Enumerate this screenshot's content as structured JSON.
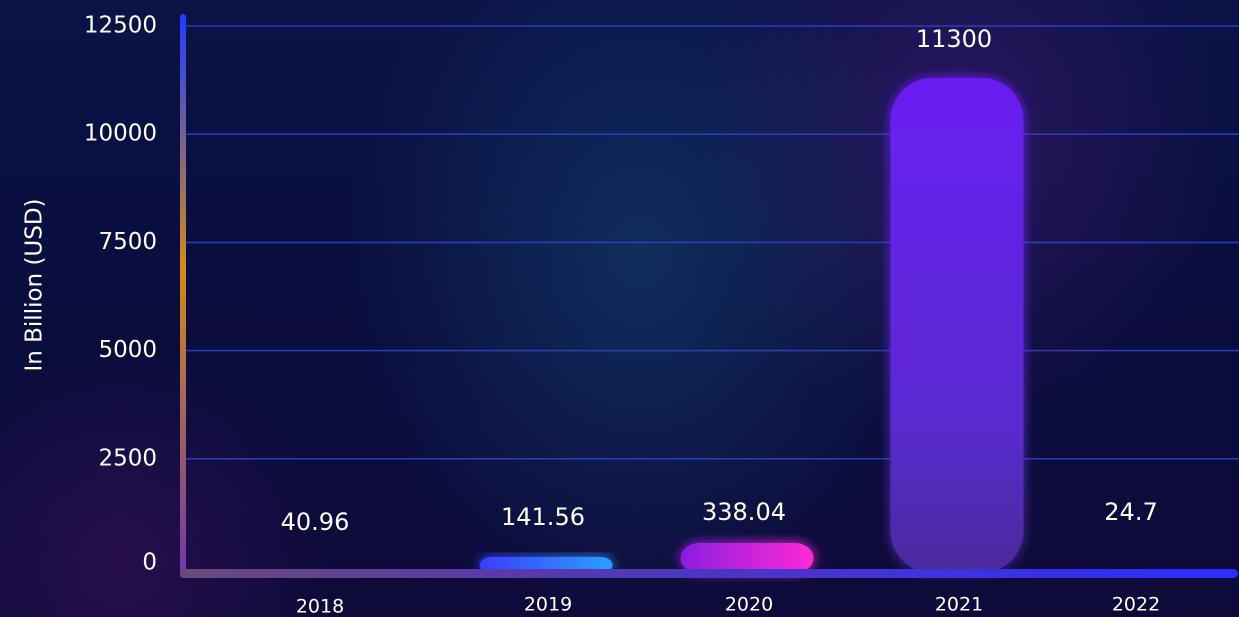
{
  "chart_data": {
    "type": "bar",
    "categories": [
      "2018",
      "2019",
      "2020",
      "2021",
      "2022"
    ],
    "values": [
      40.96,
      141.56,
      338.04,
      11300,
      24.7
    ],
    "value_labels": [
      "40.96",
      "141.56",
      "338.04",
      "11300",
      "24.7"
    ],
    "ylabel": "In Billion (USD)",
    "xlabel": "",
    "ylim": [
      0,
      12500
    ],
    "yticks": [
      0,
      2500,
      5000,
      7500,
      10000,
      12500
    ],
    "grid": true,
    "colors": {
      "bars": [
        "#4f7bff",
        "#3a6cff",
        "#d12cf0",
        "#6c1ff0",
        "#3c2cff"
      ],
      "grid": "#2a45c8",
      "x_axis": "#3a2dff",
      "y_axis_gradient": [
        "#1b3dff",
        "#d48a1a",
        "#6a3aa8"
      ]
    }
  }
}
